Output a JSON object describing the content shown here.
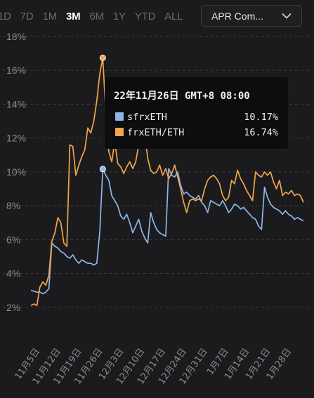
{
  "range_tabs": [
    {
      "label": "1D",
      "active": false
    },
    {
      "label": "7D",
      "active": false
    },
    {
      "label": "1M",
      "active": false
    },
    {
      "label": "3M",
      "active": true
    },
    {
      "label": "6M",
      "active": false
    },
    {
      "label": "1Y",
      "active": false
    },
    {
      "label": "YTD",
      "active": false
    },
    {
      "label": "ALL",
      "active": false
    }
  ],
  "series_select": {
    "label": "APR Com...",
    "icon": "chevron-down-icon"
  },
  "tooltip": {
    "title": "22年11月26日 GMT+8 08:00",
    "rows": [
      {
        "name": "sfrxETH",
        "value": "10.17%",
        "color": "#8fb4ea"
      },
      {
        "name": "frxETH/ETH",
        "value": "16.74%",
        "color": "#f0a54e"
      }
    ]
  },
  "chart_data": {
    "type": "line",
    "title": "",
    "xlabel": "",
    "ylabel": "",
    "ylim": [
      0,
      18
    ],
    "yticks": [
      "2%",
      "4%",
      "6%",
      "8%",
      "10%",
      "12%",
      "14%",
      "16%",
      "18%"
    ],
    "x_tick_labels": [
      "11月5日",
      "11月12日",
      "11月19日",
      "11月26日",
      "12月3日",
      "12月10日",
      "12月17日",
      "12月24日",
      "12月31日",
      "1月7日",
      "1月14日",
      "1月21日",
      "1月28日"
    ],
    "grid": "horizontal dashed",
    "x_start": "2022-11-02",
    "x_end": "2023-02-01",
    "highlight_date": "2022-11-26",
    "series": [
      {
        "name": "sfrxETH",
        "color": "#8fb4ea",
        "points": [
          [
            "2022-11-02",
            3.0
          ],
          [
            "2022-11-04",
            2.9
          ],
          [
            "2022-11-05",
            2.9
          ],
          [
            "2022-11-06",
            2.8
          ],
          [
            "2022-11-07",
            2.9
          ],
          [
            "2022-11-08",
            3.1
          ],
          [
            "2022-11-09",
            5.8
          ],
          [
            "2022-11-10",
            5.6
          ],
          [
            "2022-11-11",
            5.5
          ],
          [
            "2022-11-12",
            5.3
          ],
          [
            "2022-11-13",
            5.2
          ],
          [
            "2022-11-14",
            5.0
          ],
          [
            "2022-11-15",
            4.9
          ],
          [
            "2022-11-16",
            5.1
          ],
          [
            "2022-11-17",
            4.8
          ],
          [
            "2022-11-18",
            4.6
          ],
          [
            "2022-11-19",
            4.8
          ],
          [
            "2022-11-20",
            4.7
          ],
          [
            "2022-11-21",
            4.6
          ],
          [
            "2022-11-22",
            4.6
          ],
          [
            "2022-11-23",
            4.5
          ],
          [
            "2022-11-24",
            4.6
          ],
          [
            "2022-11-25",
            6.5
          ],
          [
            "2022-11-26",
            10.17
          ],
          [
            "2022-11-27",
            9.8
          ],
          [
            "2022-11-28",
            9.5
          ],
          [
            "2022-11-29",
            8.6
          ],
          [
            "2022-11-30",
            8.3
          ],
          [
            "2022-12-01",
            8.0
          ],
          [
            "2022-12-02",
            7.4
          ],
          [
            "2022-12-03",
            7.2
          ],
          [
            "2022-12-04",
            7.5
          ],
          [
            "2022-12-05",
            7.0
          ],
          [
            "2022-12-06",
            6.4
          ],
          [
            "2022-12-07",
            6.8
          ],
          [
            "2022-12-08",
            7.2
          ],
          [
            "2022-12-09",
            6.5
          ],
          [
            "2022-12-10",
            6.1
          ],
          [
            "2022-12-11",
            5.8
          ],
          [
            "2022-12-12",
            7.6
          ],
          [
            "2022-12-13",
            7.0
          ],
          [
            "2022-12-14",
            6.6
          ],
          [
            "2022-12-15",
            6.4
          ],
          [
            "2022-12-16",
            6.3
          ],
          [
            "2022-12-17",
            6.2
          ],
          [
            "2022-12-18",
            10.2
          ],
          [
            "2022-12-19",
            9.8
          ],
          [
            "2022-12-20",
            9.7
          ],
          [
            "2022-12-21",
            10.0
          ],
          [
            "2022-12-22",
            9.2
          ],
          [
            "2022-12-23",
            8.7
          ],
          [
            "2022-12-24",
            8.8
          ],
          [
            "2022-12-25",
            8.6
          ],
          [
            "2022-12-26",
            8.5
          ],
          [
            "2022-12-27",
            8.4
          ],
          [
            "2022-12-28",
            8.6
          ],
          [
            "2022-12-29",
            8.2
          ],
          [
            "2022-12-30",
            8.0
          ],
          [
            "2022-12-31",
            7.6
          ],
          [
            "2023-01-01",
            8.3
          ],
          [
            "2023-01-02",
            8.2
          ],
          [
            "2023-01-03",
            8.1
          ],
          [
            "2023-01-04",
            8.0
          ],
          [
            "2023-01-05",
            8.3
          ],
          [
            "2023-01-06",
            8.0
          ],
          [
            "2023-01-07",
            7.6
          ],
          [
            "2023-01-08",
            7.8
          ],
          [
            "2023-01-09",
            8.1
          ],
          [
            "2023-01-10",
            8.0
          ],
          [
            "2023-01-11",
            7.8
          ],
          [
            "2023-01-12",
            7.9
          ],
          [
            "2023-01-13",
            7.7
          ],
          [
            "2023-01-14",
            7.5
          ],
          [
            "2023-01-15",
            7.3
          ],
          [
            "2023-01-16",
            7.2
          ],
          [
            "2023-01-17",
            6.8
          ],
          [
            "2023-01-18",
            6.6
          ],
          [
            "2023-01-19",
            9.1
          ],
          [
            "2023-01-20",
            8.5
          ],
          [
            "2023-01-21",
            8.1
          ],
          [
            "2023-01-22",
            7.9
          ],
          [
            "2023-01-23",
            7.8
          ],
          [
            "2023-01-24",
            7.7
          ],
          [
            "2023-01-25",
            7.5
          ],
          [
            "2023-01-26",
            7.7
          ],
          [
            "2023-01-27",
            7.5
          ],
          [
            "2023-01-28",
            7.4
          ],
          [
            "2023-01-29",
            7.2
          ],
          [
            "2023-01-30",
            7.3
          ],
          [
            "2023-01-31",
            7.2
          ],
          [
            "2023-02-01",
            7.1
          ]
        ]
      },
      {
        "name": "frxETH/ETH",
        "color": "#f0a54e",
        "points": [
          [
            "2022-11-02",
            2.1
          ],
          [
            "2022-11-03",
            2.2
          ],
          [
            "2022-11-04",
            2.1
          ],
          [
            "2022-11-05",
            3.2
          ],
          [
            "2022-11-06",
            3.5
          ],
          [
            "2022-11-07",
            3.3
          ],
          [
            "2022-11-08",
            3.9
          ],
          [
            "2022-11-09",
            5.9
          ],
          [
            "2022-11-10",
            6.4
          ],
          [
            "2022-11-11",
            7.3
          ],
          [
            "2022-11-12",
            7.0
          ],
          [
            "2022-11-13",
            5.8
          ],
          [
            "2022-11-14",
            5.6
          ],
          [
            "2022-11-15",
            11.6
          ],
          [
            "2022-11-16",
            11.5
          ],
          [
            "2022-11-17",
            9.8
          ],
          [
            "2022-11-18",
            10.4
          ],
          [
            "2022-11-19",
            10.9
          ],
          [
            "2022-11-20",
            11.3
          ],
          [
            "2022-11-21",
            12.6
          ],
          [
            "2022-11-22",
            12.3
          ],
          [
            "2022-11-23",
            13.0
          ],
          [
            "2022-11-24",
            14.2
          ],
          [
            "2022-11-25",
            15.8
          ],
          [
            "2022-11-26",
            16.74
          ],
          [
            "2022-11-27",
            13.5
          ],
          [
            "2022-11-28",
            11.2
          ],
          [
            "2022-11-29",
            10.6
          ],
          [
            "2022-11-30",
            11.8
          ],
          [
            "2022-12-01",
            10.5
          ],
          [
            "2022-12-02",
            10.3
          ],
          [
            "2022-12-03",
            9.9
          ],
          [
            "2022-12-04",
            10.3
          ],
          [
            "2022-12-05",
            10.6
          ],
          [
            "2022-12-06",
            10.2
          ],
          [
            "2022-12-07",
            10.6
          ],
          [
            "2022-12-08",
            11.6
          ],
          [
            "2022-12-09",
            12.6
          ],
          [
            "2022-12-10",
            12.2
          ],
          [
            "2022-12-11",
            10.8
          ],
          [
            "2022-12-12",
            10.1
          ],
          [
            "2022-12-13",
            9.9
          ],
          [
            "2022-12-14",
            10.0
          ],
          [
            "2022-12-15",
            10.4
          ],
          [
            "2022-12-16",
            9.8
          ],
          [
            "2022-12-17",
            10.2
          ],
          [
            "2022-12-18",
            9.6
          ],
          [
            "2022-12-19",
            9.9
          ],
          [
            "2022-12-20",
            10.4
          ],
          [
            "2022-12-21",
            9.7
          ],
          [
            "2022-12-22",
            9.0
          ],
          [
            "2022-12-23",
            8.2
          ],
          [
            "2022-12-24",
            7.6
          ],
          [
            "2022-12-25",
            8.3
          ],
          [
            "2022-12-26",
            8.4
          ],
          [
            "2022-12-27",
            8.3
          ],
          [
            "2022-12-28",
            8.4
          ],
          [
            "2022-12-29",
            8.3
          ],
          [
            "2022-12-30",
            9.0
          ],
          [
            "2022-12-31",
            9.5
          ],
          [
            "2023-01-01",
            9.7
          ],
          [
            "2023-01-02",
            9.8
          ],
          [
            "2023-01-03",
            9.6
          ],
          [
            "2023-01-04",
            9.3
          ],
          [
            "2023-01-05",
            8.6
          ],
          [
            "2023-01-06",
            8.3
          ],
          [
            "2023-01-07",
            8.5
          ],
          [
            "2023-01-08",
            9.5
          ],
          [
            "2023-01-09",
            9.3
          ],
          [
            "2023-01-10",
            10.1
          ],
          [
            "2023-01-11",
            9.6
          ],
          [
            "2023-01-12",
            9.3
          ],
          [
            "2023-01-13",
            8.9
          ],
          [
            "2023-01-14",
            8.6
          ],
          [
            "2023-01-15",
            8.3
          ],
          [
            "2023-01-16",
            10.0
          ],
          [
            "2023-01-17",
            9.8
          ],
          [
            "2023-01-18",
            9.7
          ],
          [
            "2023-01-19",
            10.0
          ],
          [
            "2023-01-20",
            9.8
          ],
          [
            "2023-01-21",
            10.0
          ],
          [
            "2023-01-22",
            9.4
          ],
          [
            "2023-01-23",
            9.0
          ],
          [
            "2023-01-24",
            9.5
          ],
          [
            "2023-01-25",
            8.6
          ],
          [
            "2023-01-26",
            8.8
          ],
          [
            "2023-01-27",
            8.7
          ],
          [
            "2023-01-28",
            8.9
          ],
          [
            "2023-01-29",
            8.6
          ],
          [
            "2023-01-30",
            8.7
          ],
          [
            "2023-01-31",
            8.6
          ],
          [
            "2023-02-01",
            8.2
          ]
        ]
      }
    ]
  }
}
